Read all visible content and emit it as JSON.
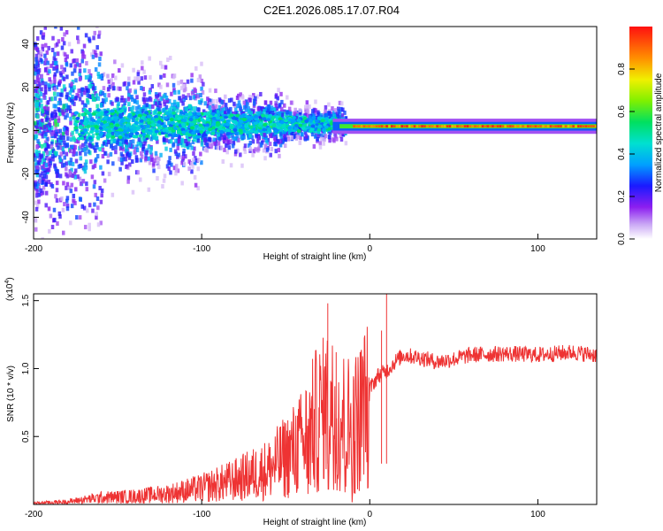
{
  "title": "C2E1.2026.085.17.07.R04",
  "chart_data": [
    {
      "type": "heatmap",
      "xlabel": "Height of straight line (km)",
      "ylabel": "Frequency (Hz)",
      "xlim": [
        -200,
        135
      ],
      "ylim": [
        -50,
        48
      ],
      "xticks": [
        "-200",
        "-100",
        "0",
        "100"
      ],
      "yticks": [
        "40",
        "20",
        "0",
        "-20",
        "-40"
      ],
      "colorbar": {
        "label": "Normalized spectral amplitude",
        "range": [
          0,
          1
        ],
        "ticks": [
          "0.0",
          "0.2",
          "0.4",
          "0.6",
          "0.8"
        ]
      },
      "description_values": {
        "ridge_center_hz": 2,
        "noisy_region_x": [
          -200,
          -20
        ],
        "stable_region_x": [
          -20,
          135
        ]
      }
    },
    {
      "type": "line",
      "xlabel": "Height of straight line (km)",
      "ylabel": "SNR (10 * v/v)",
      "yscale_label": "(x10",
      "yscale_exp": "4",
      "yscale_close": ")",
      "xlim": [
        -200,
        135
      ],
      "ylim": [
        0,
        1.55
      ],
      "xticks": [
        "-200",
        "-100",
        "0",
        "100"
      ],
      "yticks": [
        "1.5",
        "1.0",
        "0.5"
      ],
      "color": "#ee3333",
      "series": [
        {
          "name": "SNR",
          "x": [
            -200,
            -180,
            -160,
            -140,
            -120,
            -100,
            -80,
            -60,
            -50,
            -40,
            -35,
            -30,
            -25,
            -20,
            -15,
            -10,
            -5,
            0,
            5,
            10,
            15,
            20,
            30,
            40,
            50,
            60,
            80,
            100,
            120,
            135
          ],
          "values": [
            0.01,
            0.02,
            0.05,
            0.06,
            0.08,
            0.12,
            0.18,
            0.26,
            0.35,
            0.45,
            0.55,
            0.65,
            0.75,
            0.7,
            0.6,
            0.55,
            0.7,
            0.85,
            0.95,
            0.98,
            1.05,
            1.1,
            1.08,
            1.05,
            1.07,
            1.1,
            1.11,
            1.1,
            1.12,
            1.1
          ],
          "peaks": [
            {
              "x": -25,
              "y": 1.48
            },
            {
              "x": -20,
              "y": 1.12
            },
            {
              "x": 10,
              "y": 1.56
            },
            {
              "x": 7,
              "y": 1.28
            }
          ]
        }
      ]
    }
  ]
}
